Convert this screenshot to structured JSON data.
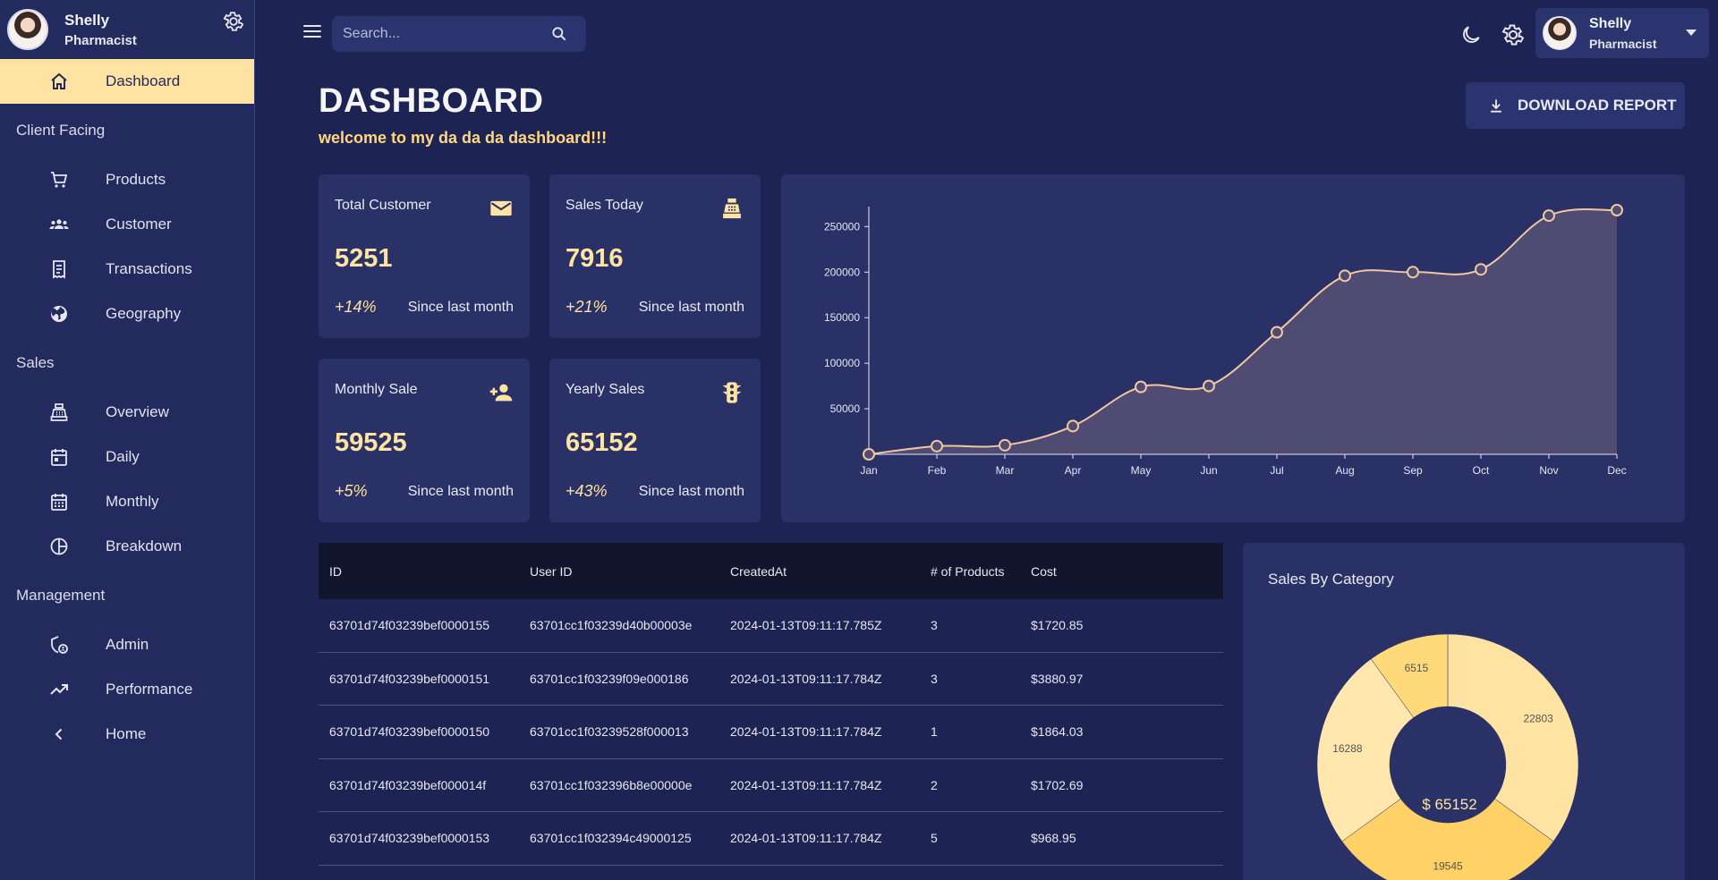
{
  "sidebar": {
    "user": {
      "name": "Shelly",
      "role": "Pharmacist"
    },
    "dashboard": {
      "label": "Dashboard",
      "icon": "home-icon"
    },
    "sections": {
      "client_facing": "Client Facing",
      "sales": "Sales",
      "management": "Management"
    },
    "client_items": [
      {
        "label": "Products",
        "icon": "shopping-cart-icon"
      },
      {
        "label": "Customer",
        "icon": "groups-icon"
      },
      {
        "label": "Transactions",
        "icon": "receipt-icon"
      },
      {
        "label": "Geography",
        "icon": "globe-icon"
      }
    ],
    "sales_items": [
      {
        "label": "Overview",
        "icon": "point-of-sale-icon"
      },
      {
        "label": "Daily",
        "icon": "calendar-today-icon"
      },
      {
        "label": "Monthly",
        "icon": "calendar-month-icon"
      },
      {
        "label": "Breakdown",
        "icon": "pie-chart-icon"
      }
    ],
    "management_items": [
      {
        "label": "Admin",
        "icon": "admin-icon"
      },
      {
        "label": "Performance",
        "icon": "trending-up-icon"
      },
      {
        "label": "Home",
        "icon": "chevron-left-icon"
      }
    ]
  },
  "topbar": {
    "search_placeholder": "Search...",
    "user": {
      "name": "Shelly",
      "role": "Pharmacist"
    }
  },
  "header": {
    "title": "DASHBOARD",
    "subtitle": "welcome to my da da da dashboard!!!",
    "download_label": "DOWNLOAD REPORT"
  },
  "stats": [
    {
      "title": "Total Customer",
      "value": "5251",
      "pct": "+14%",
      "since": "Since last month",
      "icon": "email-icon"
    },
    {
      "title": "Sales Today",
      "value": "7916",
      "pct": "+21%",
      "since": "Since last month",
      "icon": "point-of-sale-icon"
    },
    {
      "title": "Monthly Sale",
      "value": "59525",
      "pct": "+5%",
      "since": "Since last month",
      "icon": "person-add-icon"
    },
    {
      "title": "Yearly Sales",
      "value": "65152",
      "pct": "+43%",
      "since": "Since last month",
      "icon": "traffic-icon"
    }
  ],
  "chart_data": [
    {
      "type": "area",
      "title": "",
      "xlabel": "",
      "ylabel": "",
      "x": [
        "Jan",
        "Feb",
        "Mar",
        "Apr",
        "May",
        "Jun",
        "Jul",
        "Aug",
        "Sep",
        "Oct",
        "Nov",
        "Dec"
      ],
      "y": [
        0,
        9000,
        10000,
        31000,
        74000,
        75000,
        134000,
        196000,
        200000,
        203000,
        262000,
        268000
      ],
      "y_ticks": [
        50000,
        100000,
        150000,
        200000,
        250000
      ],
      "ylim": [
        0,
        268000
      ],
      "grid": false,
      "line_color": "#f0c8a0",
      "fill_color": "#4f4b73"
    },
    {
      "type": "pie",
      "title": "Sales By Category",
      "center_label": "$ 65152",
      "slices": [
        {
          "value": 22803,
          "label": "22803",
          "color": "#ffe3a3"
        },
        {
          "value": 19545,
          "label": "19545",
          "color": "#ffd166"
        },
        {
          "value": 16288,
          "label": "16288",
          "color": "#ffe7ad"
        },
        {
          "value": 6515,
          "label": "6515",
          "color": "#ffd97a"
        }
      ]
    }
  ],
  "table": {
    "headers": [
      "ID",
      "User ID",
      "CreatedAt",
      "# of Products",
      "Cost"
    ],
    "rows": [
      [
        "63701d74f03239bef0000155",
        "63701cc1f03239d40b00003e",
        "2024-01-13T09:11:17.785Z",
        "3",
        "$1720.85"
      ],
      [
        "63701d74f03239bef0000151",
        "63701cc1f03239f09e000186",
        "2024-01-13T09:11:17.784Z",
        "3",
        "$3880.97"
      ],
      [
        "63701d74f03239bef0000150",
        "63701cc1f03239528f000013",
        "2024-01-13T09:11:17.784Z",
        "1",
        "$1864.03"
      ],
      [
        "63701d74f03239bef000014f",
        "63701cc1f032396b8e00000e",
        "2024-01-13T09:11:17.784Z",
        "2",
        "$1702.69"
      ],
      [
        "63701d74f03239bef0000153",
        "63701cc1f032394c49000125",
        "2024-01-13T09:11:17.784Z",
        "5",
        "$968.95"
      ]
    ]
  }
}
